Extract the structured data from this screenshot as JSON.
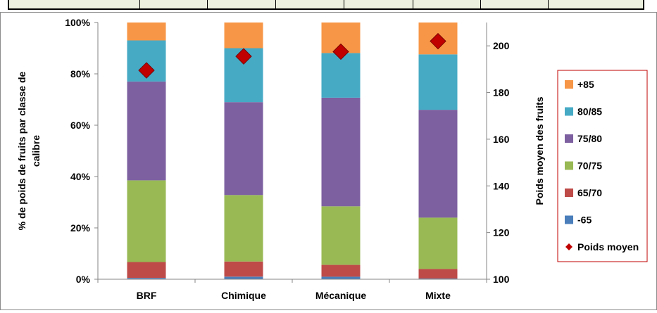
{
  "chart_data": {
    "type": "bar",
    "stacked": true,
    "percent_stacked": true,
    "categories": [
      "BRF",
      "Chimique",
      "Mécanique",
      "Mixte"
    ],
    "series": [
      {
        "name": "-65",
        "color": "#4a7ebb",
        "values": [
          0.5,
          1.0,
          1.0,
          0.3
        ]
      },
      {
        "name": "65/70",
        "color": "#be4b48",
        "values": [
          6.2,
          5.9,
          4.6,
          3.7
        ]
      },
      {
        "name": "70/75",
        "color": "#98b954",
        "values": [
          31.8,
          25.9,
          22.8,
          20.0
        ]
      },
      {
        "name": "75/80",
        "color": "#7d60a0",
        "values": [
          38.5,
          36.2,
          42.3,
          42.0
        ]
      },
      {
        "name": "80/85",
        "color": "#46aac5",
        "values": [
          16.0,
          21.0,
          17.4,
          21.6
        ]
      },
      {
        "name": "+85",
        "color": "#f79646",
        "values": [
          7.0,
          10.0,
          11.9,
          12.4
        ]
      }
    ],
    "line_series": {
      "name": "Poids moyen",
      "color": "#c00000",
      "marker": "diamond",
      "axis": "secondary",
      "values": [
        189.5,
        195.5,
        197.5,
        202
      ]
    },
    "ylabel": "% de poids de fruits par classe de calibre",
    "ylabel_lines": [
      "% de poids de fruits par classe de",
      "calibre"
    ],
    "y2label": "Poids moyen des fruits",
    "ylim": [
      0,
      100
    ],
    "y2lim": [
      100,
      210
    ],
    "yticks": [
      "0%",
      "20%",
      "40%",
      "60%",
      "80%",
      "100%"
    ],
    "y2ticks": [
      "100",
      "120",
      "140",
      "160",
      "180",
      "200"
    ],
    "grid": false,
    "legend_position": "right",
    "legend_border_color": "#c00000",
    "legend_order": [
      "+85",
      "80/85",
      "75/80",
      "70/75",
      "65/70",
      "-65",
      "Poids moyen"
    ]
  }
}
